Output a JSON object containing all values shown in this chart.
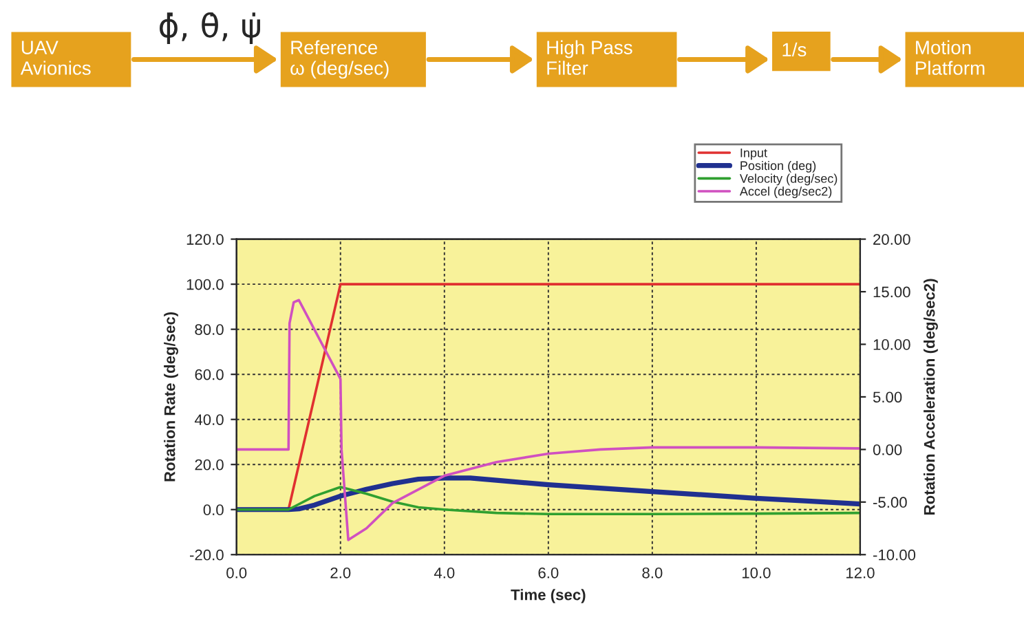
{
  "chart_data": {
    "type": "line",
    "xlabel": "Time (sec)",
    "ylabel": "Rotation Rate (deg/sec)",
    "y2label": "Rotation Acceleration (deg/sec2)",
    "annotations": [
      "UAV\nAvionics",
      "ϕ̇, θ̇, ψ̇",
      "Reference\nω (deg/sec)",
      "High Pass\nFilter",
      "1/s",
      "Motion\nPlatform"
    ],
    "series": [
      {
        "name": "Input",
        "color": "#e03030",
        "x": [
          0,
          1,
          2,
          12
        ],
        "values": [
          0,
          0,
          100,
          100
        ]
      },
      {
        "name": "Position (deg)",
        "color": "#203090",
        "x": [
          0,
          1,
          1.2,
          1.5,
          2,
          2.5,
          3,
          3.5,
          4,
          4.5,
          5,
          6,
          7,
          8,
          9,
          10,
          11,
          12
        ],
        "values": [
          0,
          0,
          0.3,
          2,
          6,
          9,
          11.5,
          13.5,
          14,
          14,
          13,
          11,
          9.5,
          8,
          6.5,
          5,
          3.8,
          2.5
        ]
      },
      {
        "name": "Velocity (deg/sec)",
        "color": "#30a030",
        "x": [
          0,
          1,
          1.5,
          2,
          2.5,
          3,
          3.5,
          4,
          5,
          6,
          8,
          10,
          12
        ],
        "values": [
          0,
          0,
          6,
          10,
          7,
          3.5,
          1,
          0,
          -1.5,
          -2,
          -2,
          -1.8,
          -1.5
        ]
      },
      {
        "name": "Accel (deg/sec2)",
        "color": "#d050c0",
        "axis": "y2",
        "x": [
          0,
          1,
          1.02,
          1.1,
          1.2,
          2,
          2.02,
          2.15,
          2.5,
          3,
          4,
          5,
          6,
          7,
          8,
          10,
          12
        ],
        "values": [
          0,
          0,
          12,
          14,
          14.2,
          6.7,
          0,
          -8.6,
          -7.5,
          -5.1,
          -2.5,
          -1.2,
          -0.4,
          0,
          0.2,
          0.2,
          0.1
        ]
      }
    ],
    "xlim": [
      0,
      12
    ],
    "xticks": [
      {
        "value": 0,
        "label": "0.0"
      },
      {
        "value": 2,
        "label": "2.0"
      },
      {
        "value": 4,
        "label": "4.0"
      },
      {
        "value": 6,
        "label": "6.0"
      },
      {
        "value": 8,
        "label": "8.0"
      },
      {
        "value": 10,
        "label": "10.0"
      },
      {
        "value": 12,
        "label": "12.0"
      }
    ],
    "ylim": [
      -20,
      120
    ],
    "yticks": [
      {
        "value": -20,
        "label": "-20.0"
      },
      {
        "value": 0,
        "label": "0.0"
      },
      {
        "value": 20,
        "label": "20.0"
      },
      {
        "value": 40,
        "label": "40.0"
      },
      {
        "value": 60,
        "label": "60.0"
      },
      {
        "value": 80,
        "label": "80.0"
      },
      {
        "value": 100,
        "label": "100.0"
      },
      {
        "value": 120,
        "label": "120.0"
      }
    ],
    "y2lim": [
      -10,
      20
    ],
    "y2ticks": [
      {
        "value": -10,
        "label": "-10.00"
      },
      {
        "value": -5,
        "label": "-5.00"
      },
      {
        "value": 0,
        "label": "0.00"
      },
      {
        "value": 5,
        "label": "5.00"
      },
      {
        "value": 10,
        "label": "10.00"
      },
      {
        "value": 15,
        "label": "15.00"
      },
      {
        "value": 20,
        "label": "20.00"
      }
    ],
    "grid": true,
    "legend": "top right",
    "marker": "none",
    "line_style": "solid"
  }
}
